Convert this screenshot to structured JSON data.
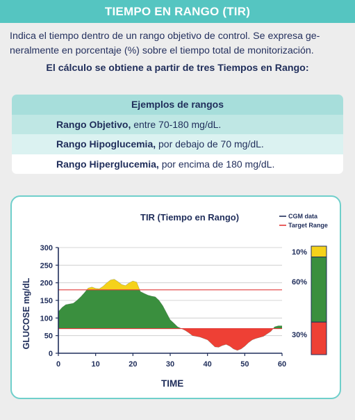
{
  "header": {
    "title": "TIEMPO EN RANGO (TIR)"
  },
  "intro": {
    "line1": "Indica el tiempo dentro de un rango objetivo de control. Se expresa ge-",
    "line2": "neralmente en porcentaje (%) sobre el tiempo total de monitorización.",
    "bold": "El cálculo se obtiene a partir de tres Tiempos en Rango:"
  },
  "ranges": {
    "title": "Ejemplos de rangos",
    "rows": [
      {
        "label": "Rango Objetivo,",
        "text": " entre 70-180 mg/dL."
      },
      {
        "label": "Rango Hipoglucemia,",
        "text": " por debajo de 70 mg/dL."
      },
      {
        "label": "Rango Hiperglucemia,",
        "text": " por encima de 180 mg/dL."
      }
    ]
  },
  "chart_data": {
    "type": "area",
    "title": "TIR (Tiempo en Rango)",
    "xlabel": "TIME",
    "ylabel": "GLUCOSE mg/dL",
    "xlim": [
      0,
      60
    ],
    "ylim": [
      0,
      300
    ],
    "x_ticks": [
      0,
      10,
      20,
      30,
      40,
      50,
      60
    ],
    "y_ticks": [
      0,
      50,
      100,
      150,
      200,
      250,
      300
    ],
    "target_range": [
      70,
      180
    ],
    "legend": [
      {
        "name": "CGM data",
        "color": "#1f2d5a"
      },
      {
        "name": "Target Range",
        "color": "#e23a3a"
      }
    ],
    "legend_position": "top-right",
    "series": [
      {
        "name": "CGM data",
        "x": [
          0,
          1,
          2,
          3,
          4,
          5,
          6,
          7,
          8,
          9,
          10,
          11,
          12,
          13,
          14,
          15,
          16,
          17,
          18,
          19,
          20,
          21,
          22,
          23,
          24,
          25,
          26,
          27,
          28,
          29,
          30,
          31,
          32,
          33,
          34,
          35,
          36,
          37,
          38,
          39,
          40,
          41,
          42,
          43,
          44,
          45,
          46,
          47,
          48,
          49,
          50,
          51,
          52,
          53,
          54,
          55,
          56,
          57,
          58,
          59,
          60
        ],
        "y": [
          118,
          130,
          138,
          140,
          142,
          150,
          160,
          172,
          185,
          188,
          184,
          183,
          190,
          200,
          208,
          210,
          203,
          195,
          192,
          200,
          205,
          202,
          175,
          170,
          165,
          162,
          160,
          150,
          135,
          115,
          95,
          85,
          75,
          70,
          65,
          58,
          50,
          48,
          46,
          42,
          38,
          28,
          18,
          17,
          22,
          25,
          20,
          12,
          8,
          12,
          20,
          30,
          38,
          42,
          45,
          48,
          55,
          62,
          75,
          78,
          78
        ]
      }
    ],
    "tir_bar": {
      "segments": [
        {
          "label": "10%",
          "value": 10,
          "color": "#f5d21a"
        },
        {
          "label": "60%",
          "value": 60,
          "color": "#3a8f3e"
        },
        {
          "label": "30%",
          "value": 30,
          "color": "#ee4035"
        }
      ]
    },
    "colors": {
      "in_range": "#3a8f3e",
      "above": "#f5d21a",
      "below": "#ee4035"
    }
  }
}
